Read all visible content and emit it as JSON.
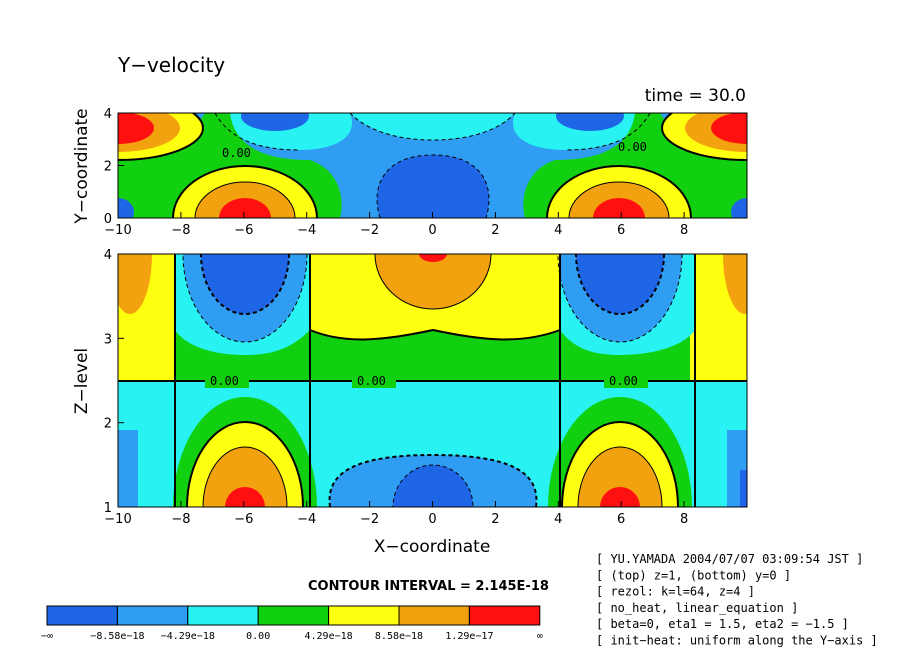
{
  "chart_data": {
    "type": "heatmap",
    "title": "Y−velocity",
    "time_label": "time = 30.0",
    "contour_interval_label": "CONTOUR INTERVAL = 2.145E-18",
    "zero_label": "0.00",
    "colors": [
      "#1f66e6",
      "#2f9df2",
      "#28f2f2",
      "#10d010",
      "#ffff10",
      "#f2a20e",
      "#ff1010"
    ],
    "top_panel": {
      "xlabel": "",
      "ylabel": "Y−coordinate",
      "xlim": [
        -10,
        10
      ],
      "ylim": [
        0,
        4
      ],
      "x_ticks": [
        "−10",
        "−8",
        "−6",
        "−4",
        "−2",
        "0",
        "2",
        "4",
        "6",
        "8"
      ],
      "y_ticks": [
        "0",
        "2",
        "4"
      ]
    },
    "bottom_panel": {
      "xlabel": "X−coordinate",
      "ylabel": "Z−level",
      "xlim": [
        -10,
        10
      ],
      "ylim": [
        1,
        4
      ],
      "x_ticks": [
        "−10",
        "−8",
        "−6",
        "−4",
        "−2",
        "0",
        "2",
        "4",
        "6",
        "8"
      ],
      "y_ticks": [
        "1",
        "2",
        "3",
        "4"
      ]
    },
    "legend": {
      "placement": "bottom-left",
      "labels": [
        "−∞",
        "−8.58e−18",
        "−4.29e−18",
        "0.00",
        "4.29e−18",
        "8.58e−18",
        "1.29e−17",
        "∞"
      ]
    },
    "info_lines": [
      "[ YU.YAMADA 2004/07/07 03:09:54 JST ]",
      "[ (top) z=1, (bottom) y=0 ]",
      "[ rezol: k=l=64, z=4 ]",
      "[ no_heat, linear_equation ]",
      "[ beta=0, eta1 = 1.5, eta2 = −1.5 ]",
      "[ init−heat: uniform along the Y−axis ]"
    ]
  }
}
